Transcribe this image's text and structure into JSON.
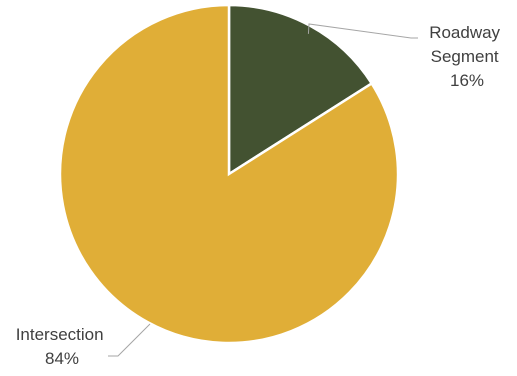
{
  "chart_data": {
    "type": "pie",
    "title": "",
    "categories": [
      "Roadway Segment",
      "Intersection"
    ],
    "values": [
      16,
      84
    ],
    "unit": "%",
    "data_labels": [
      {
        "category_lines": [
          "Roadway",
          "Segment"
        ],
        "value": "16%"
      },
      {
        "category_lines": [
          "Intersection"
        ],
        "value": "84%"
      }
    ],
    "colors": [
      "#435231",
      "#E0AE37"
    ],
    "start_angle": "12 o'clock",
    "direction": "clockwise",
    "legend": "none"
  }
}
